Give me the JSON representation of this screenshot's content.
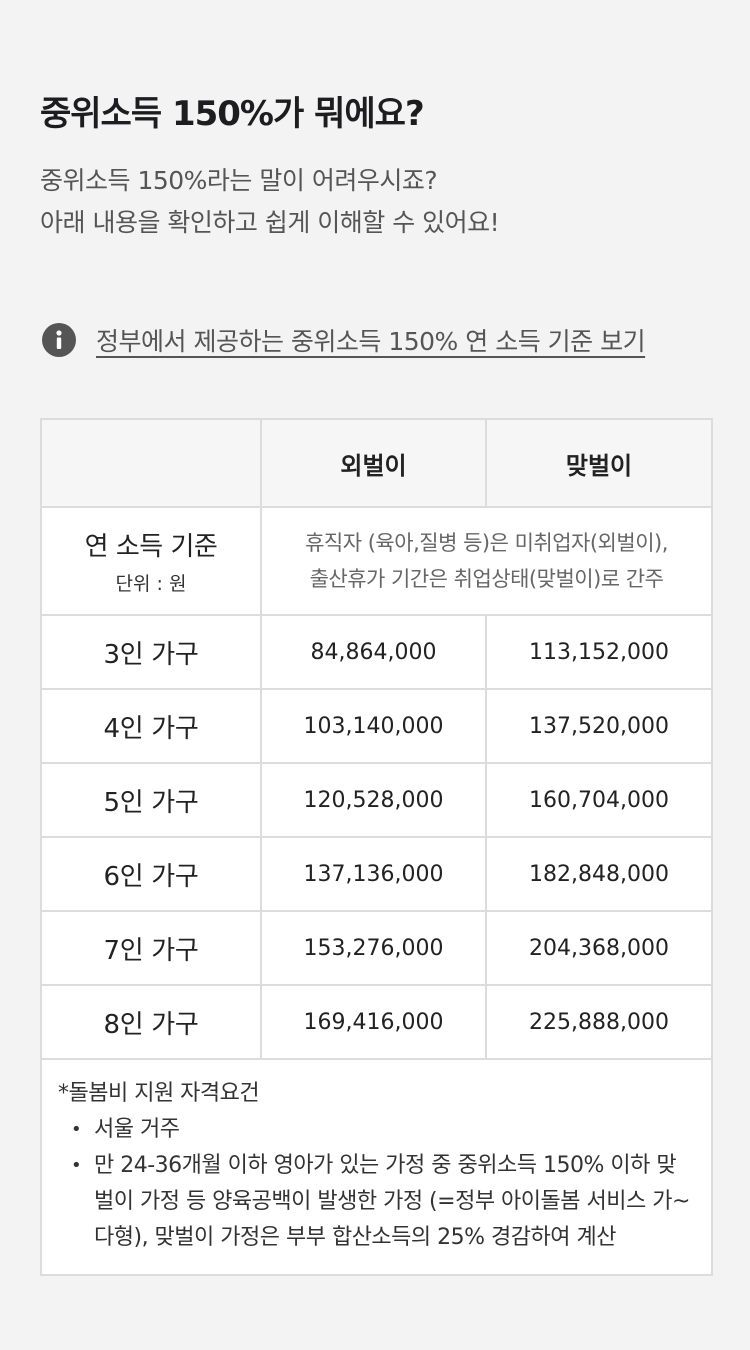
{
  "header": {
    "title": "중위소득 150%가 뭐에요?",
    "desc_line1": "중위소득 150%라는 말이 어려우시죠?",
    "desc_line2": "아래 내용을 확인하고 쉽게 이해할 수 있어요!"
  },
  "info": {
    "icon": "info-icon",
    "link_text": "정부에서 제공하는 중위소득 150% 연 소득 기준 보기"
  },
  "table": {
    "columns": [
      "",
      "외벌이",
      "맞벌이"
    ],
    "basis": {
      "label": "연 소득 기준",
      "unit": "단위 : 원",
      "note_line1": "휴직자 (육아,질병 등)은 미취업자(외벌이),",
      "note_line2": "출산휴가 기간은 취업상태(맞벌이)로 간주"
    },
    "rows": [
      {
        "household": "3인 가구",
        "single": "84,864,000",
        "dual": "113,152,000"
      },
      {
        "household": "4인 가구",
        "single": "103,140,000",
        "dual": "137,520,000"
      },
      {
        "household": "5인 가구",
        "single": "120,528,000",
        "dual": "160,704,000"
      },
      {
        "household": "6인 가구",
        "single": "137,136,000",
        "dual": "182,848,000"
      },
      {
        "household": "7인 가구",
        "single": "153,276,000",
        "dual": "204,368,000"
      },
      {
        "household": "8인 가구",
        "single": "169,416,000",
        "dual": "225,888,000"
      }
    ]
  },
  "footnote": {
    "title": "*돌봄비 지원 자격요건",
    "bullet": "•",
    "items": [
      "서울 거주",
      "만 24-36개월 이하 영아가 있는 가정 중 중위소득 150% 이하 맞벌이 가정 등 양육공백이 발생한 가정 (=정부 아이돌봄 서비스 가~다형), 맞벌이 가정은 부부 합산소득의 25% 경감하여 계산"
    ]
  }
}
